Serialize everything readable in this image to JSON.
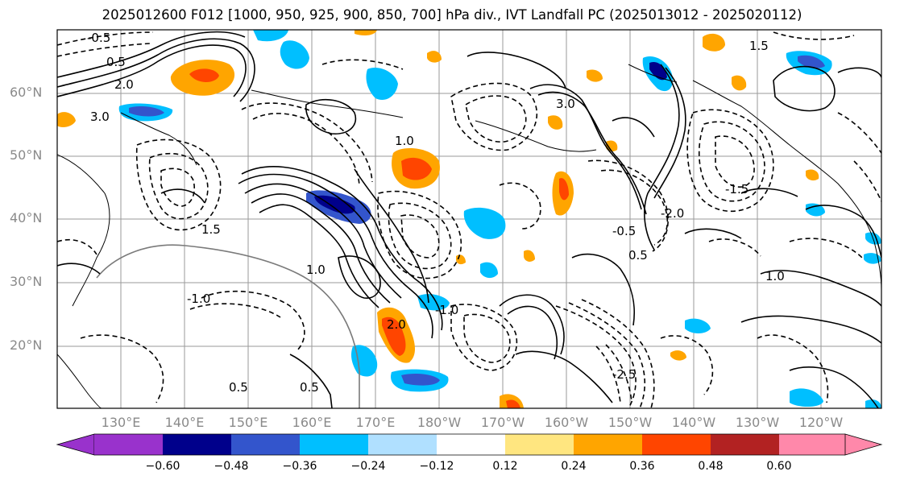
{
  "title": "2025012600 F012 [1000, 950, 925, 900, 850, 700] hPa div., IVT Landfall PC (2025013012 - 2025020112)",
  "lat_labels": [
    "60°N",
    "50°N",
    "40°N",
    "30°N",
    "20°N"
  ],
  "lon_labels": [
    "130°E",
    "140°E",
    "150°E",
    "160°E",
    "170°E",
    "180°W",
    "170°W",
    "160°W",
    "150°W",
    "140°W",
    "130°W",
    "120°W"
  ],
  "contour_labels": [
    "-0.5",
    "0.5",
    "2.0",
    "3.0",
    "1.5",
    "-1.0",
    "1.0",
    "-2.0",
    "-1.5",
    "-0.5",
    "1.0",
    "0.5",
    "-2.5",
    "3.0",
    "0.5",
    "0.5",
    "1.0",
    "-1.0",
    "1.5",
    "2.0"
  ],
  "colorbar": {
    "ticks": [
      "−0.60",
      "−0.48",
      "−0.36",
      "−0.24",
      "−0.12",
      "0.12",
      "0.24",
      "0.36",
      "0.48",
      "0.60"
    ],
    "colors": [
      "#9932cc",
      "#00008b",
      "#3355cc",
      "#00bfff",
      "#b0e0ff",
      "#ffffff",
      "#ffe680",
      "#ffa500",
      "#ff4500",
      "#b22222",
      "#ff88aa"
    ]
  }
}
